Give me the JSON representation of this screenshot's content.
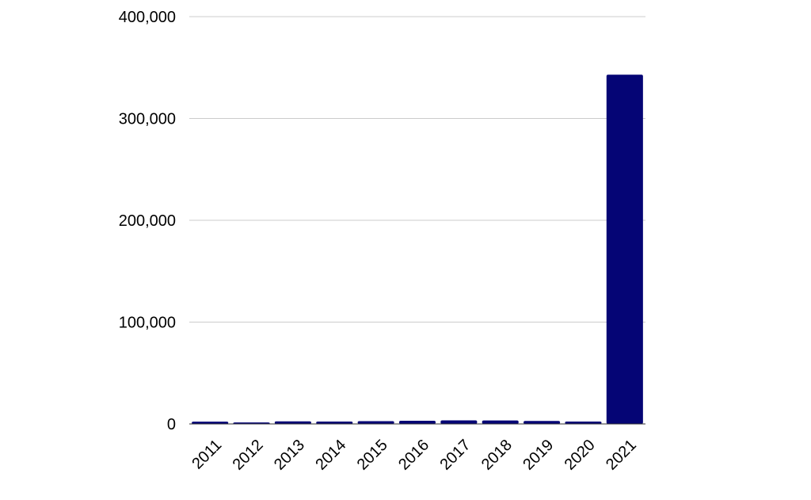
{
  "chart_data": {
    "type": "bar",
    "title": "",
    "xlabel": "",
    "ylabel": "",
    "categories": [
      "2011",
      "2012",
      "2013",
      "2014",
      "2015",
      "2016",
      "2017",
      "2018",
      "2019",
      "2020",
      "2021"
    ],
    "values": [
      2200,
      1500,
      2500,
      2300,
      2700,
      3100,
      3500,
      3400,
      2900,
      2300,
      343000
    ],
    "ylim": [
      0,
      400000
    ],
    "yticks": [
      0,
      100000,
      200000,
      300000,
      400000
    ],
    "ytick_labels": [
      "0",
      "100,000",
      "200,000",
      "300,000",
      "400,000"
    ],
    "grid": true,
    "legend": "none",
    "bar_color": "#050575",
    "grid_color": "#cccccc"
  }
}
